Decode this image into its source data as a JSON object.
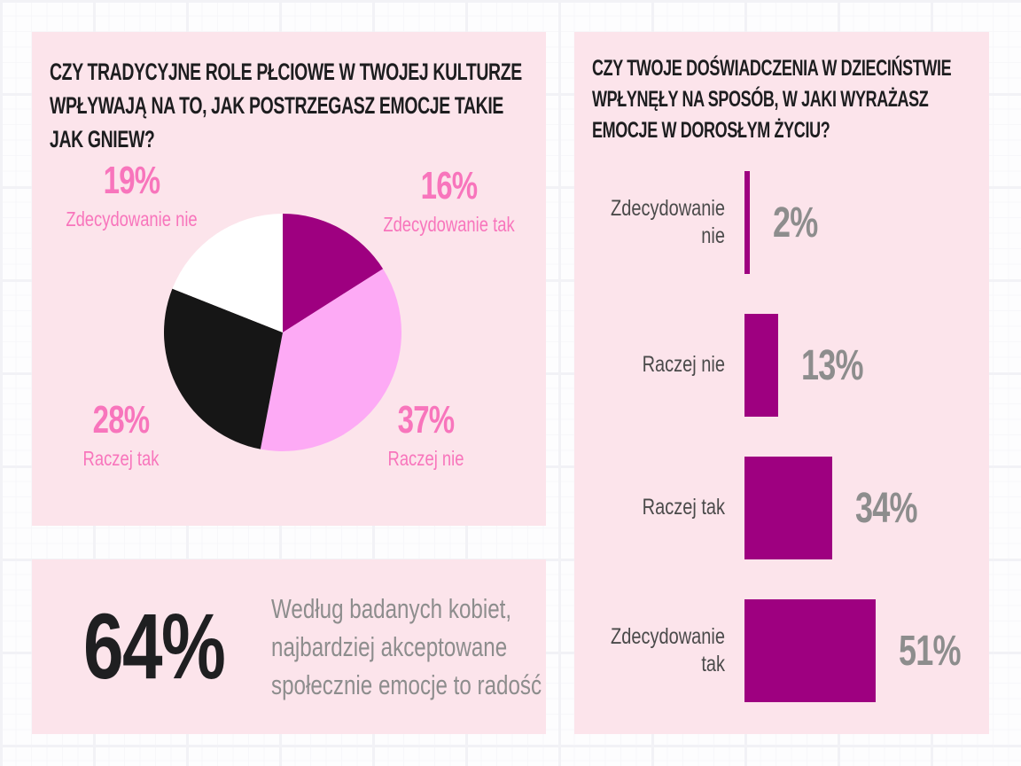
{
  "colors": {
    "panel_background": "#fce4eb",
    "accent_magenta": "#9e0080",
    "accent_orchid": "#fdaaf5",
    "accent_hot_pink": "#f875bc",
    "slice_black": "#161616",
    "slice_white": "#ffffff",
    "title_text": "#1d1d1f",
    "gray_text": "#8d8d8d",
    "bar_label_text": "#4a4a4a"
  },
  "pie_panel": {
    "title_lines": [
      "CZY TRADYCYJNE ROLE PŁCIOWE W TWOJEJ KULTURZE",
      "WPŁYWAJĄ NA TO, JAK POSTRZEGASZ EMOCJE TAKIE",
      "JAK GNIEW?"
    ]
  },
  "stat_panel": {
    "value": "64%",
    "text_lines": [
      "Według badanych kobiet,",
      "najbardziej akceptowane",
      "społecznie emocje to radość"
    ]
  },
  "bar_panel": {
    "title_lines": [
      "CZY TWOJE DOŚWIADCZENIA W DZIECIŃSTWIE",
      "WPŁYNĘŁY NA SPOSÓB, W JAKI WYRAŻASZ",
      "EMOCJE W DOROSŁYM ŻYCIU?"
    ]
  },
  "chart_data": [
    {
      "type": "pie",
      "title": "CZY TRADYCYJNE ROLE PŁCIOWE W TWOJEJ KULTURZE WPŁYWAJĄ NA TO, JAK POSTRZEGASZ EMOCJE TAKIE JAK GNIEW?",
      "start_angle_deg": 0,
      "direction": "clockwise",
      "label_color": "#f875bc",
      "segments": [
        {
          "label": "Zdecydowanie tak",
          "value": 16,
          "value_label": "16%",
          "color": "#9e0080"
        },
        {
          "label": "Raczej nie",
          "value": 37,
          "value_label": "37%",
          "color": "#fdaaf5"
        },
        {
          "label": "Raczej tak",
          "value": 28,
          "value_label": "28%",
          "color": "#161616"
        },
        {
          "label": "Zdecydowanie nie",
          "value": 19,
          "value_label": "19%",
          "color": "#ffffff"
        }
      ]
    },
    {
      "type": "bar",
      "orientation": "horizontal",
      "title": "CZY TWOJE DOŚWIADCZENIA W DZIECIŃSTWIE WPŁYNĘŁY NA SPOSÓB, W JAKI WYRAŻASZ EMOCJE W DOROSŁYM ŻYCIU?",
      "categories": [
        "Zdecydowanie nie",
        "Raczej nie",
        "Raczej tak",
        "Zdecydowanie tak"
      ],
      "values": [
        2,
        13,
        34,
        51
      ],
      "value_labels": [
        "2%",
        "13%",
        "34%",
        "51%"
      ],
      "bar_color": "#9e0080",
      "value_text_color": "#8d8d8d",
      "xlim": [
        0,
        60
      ],
      "grid": false,
      "legend": false
    }
  ]
}
